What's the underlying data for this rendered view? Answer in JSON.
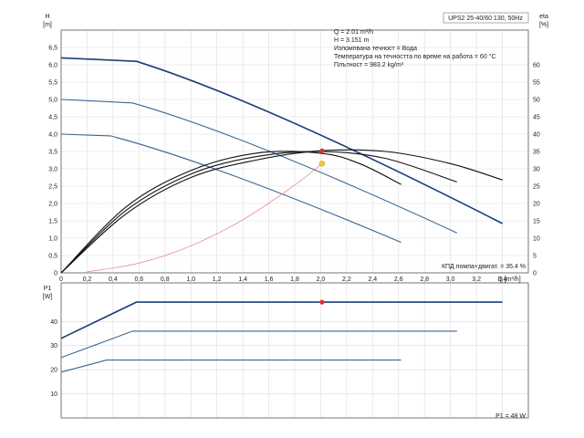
{
  "chart_data": [
    {
      "type": "line",
      "panel": "head and efficiency",
      "title": "UPS2 25-40/60 130, 50Hz",
      "xlabel": "Q [m³/h]",
      "ylabel": "H [m]",
      "ylabel2": "eta [%]",
      "xlim": [
        0,
        3.6
      ],
      "ylim": [
        0,
        7.0
      ],
      "y2lim": [
        0,
        70
      ],
      "x_ticks": [
        "0",
        "0,2",
        "0,4",
        "0,6",
        "0,8",
        "1,0",
        "1,2",
        "1,4",
        "1,6",
        "1,8",
        "2,0",
        "2,2",
        "2,4",
        "2,6",
        "2,8",
        "3,0",
        "3,2",
        "3,4"
      ],
      "y_ticks": [
        "0",
        "0,5",
        "1,0",
        "1,5",
        "2,0",
        "2,5",
        "3,0",
        "3,5",
        "4,0",
        "4,5",
        "5,0",
        "5,5",
        "6,0",
        "6,5"
      ],
      "y2_ticks": [
        "0",
        "5",
        "10",
        "15",
        "20",
        "25",
        "30",
        "35",
        "40",
        "45",
        "50",
        "55",
        "60"
      ],
      "grid": true,
      "annotations": [
        "Q = 2.01 m³/h",
        "H = 3.151 m",
        "Изпомпвана течност = Вода",
        "Температура на течността по време на работа = 60 °C",
        "Плътност = 983.2 kg/m³"
      ],
      "efficiency_label": "КПД помпа+двигат. = 35.4 %",
      "duty_point": {
        "Q": 2.01,
        "H": 3.151
      },
      "series": [
        {
          "role": "head",
          "color": "#1a3f7a",
          "x": [
            0,
            0.58,
            3.4
          ],
          "y": [
            6.2,
            6.1,
            1.42
          ]
        },
        {
          "role": "head",
          "color": "#3a6496",
          "x": [
            0,
            0.55,
            3.05
          ],
          "y": [
            5.0,
            4.9,
            1.15
          ]
        },
        {
          "role": "head",
          "color": "#3a6496",
          "x": [
            0,
            0.38,
            2.62
          ],
          "y": [
            4.0,
            3.95,
            0.88
          ]
        },
        {
          "role": "efficiency",
          "color": "#111111",
          "x": [
            0,
            0.5,
            1.0,
            1.5,
            2.0,
            2.5,
            3.0,
            3.4
          ],
          "y": [
            0,
            1.7,
            2.75,
            3.25,
            3.52,
            3.5,
            3.15,
            2.68
          ]
        },
        {
          "role": "efficiency",
          "color": "#111111",
          "x": [
            0,
            0.5,
            1.0,
            1.5,
            2.0,
            2.5,
            3.05
          ],
          "y": [
            0,
            1.8,
            2.85,
            3.35,
            3.5,
            3.3,
            2.62
          ]
        },
        {
          "role": "efficiency",
          "color": "#111111",
          "x": [
            0,
            0.5,
            1.0,
            1.5,
            2.0,
            2.3,
            2.62
          ],
          "y": [
            0,
            1.9,
            2.95,
            3.45,
            3.45,
            3.15,
            2.55
          ]
        },
        {
          "role": "system",
          "color": "#e87d7d",
          "x": [
            0.2,
            0.6,
            1.0,
            1.4,
            1.8,
            2.01
          ],
          "y": [
            0.03,
            0.28,
            0.78,
            1.53,
            2.53,
            3.151
          ]
        }
      ]
    },
    {
      "type": "line",
      "panel": "power",
      "ylabel": "P1 [W]",
      "xlim": [
        0,
        3.6
      ],
      "ylim": [
        0,
        56
      ],
      "y_ticks": [
        "10",
        "20",
        "30",
        "40"
      ],
      "grid": true,
      "power_label": "P1 = 48 W",
      "duty_point": {
        "Q": 2.01,
        "P1": 48
      },
      "series": [
        {
          "color": "#1a3f7a",
          "x": [
            0,
            0.58,
            3.4
          ],
          "y": [
            33,
            48,
            48
          ]
        },
        {
          "color": "#3a6496",
          "x": [
            0,
            0.55,
            3.05
          ],
          "y": [
            25,
            36,
            36
          ]
        },
        {
          "color": "#3a6496",
          "x": [
            0,
            0.35,
            2.62
          ],
          "y": [
            19,
            24,
            24
          ]
        }
      ]
    }
  ]
}
